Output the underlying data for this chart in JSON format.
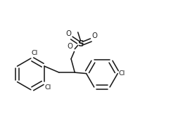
{
  "bg": "#ffffff",
  "lc": "#1a1a1a",
  "lw": 1.15,
  "fs": 6.8,
  "ring_r": 0.3,
  "dbl_sep": 0.038,
  "xlim": [
    -1.3,
    1.95
  ],
  "ylim": [
    -0.9,
    0.88
  ]
}
